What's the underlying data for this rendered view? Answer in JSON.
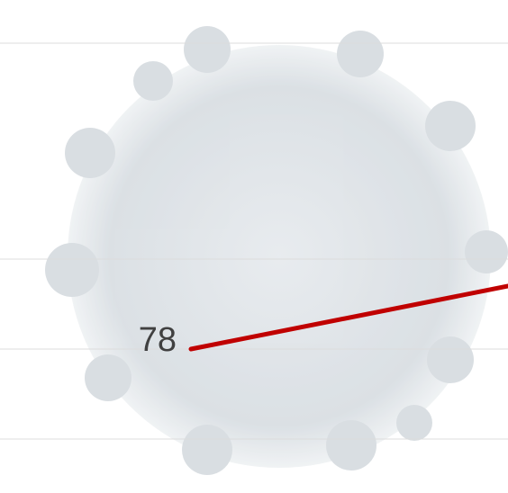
{
  "chart_data": {
    "type": "line",
    "categories": [
      null,
      null
    ],
    "values": [
      78,
      85
    ],
    "color": "#c00000",
    "ylim": [
      62,
      116.8
    ],
    "yticks": [
      68,
      78,
      88,
      112
    ],
    "grid": true
  }
}
